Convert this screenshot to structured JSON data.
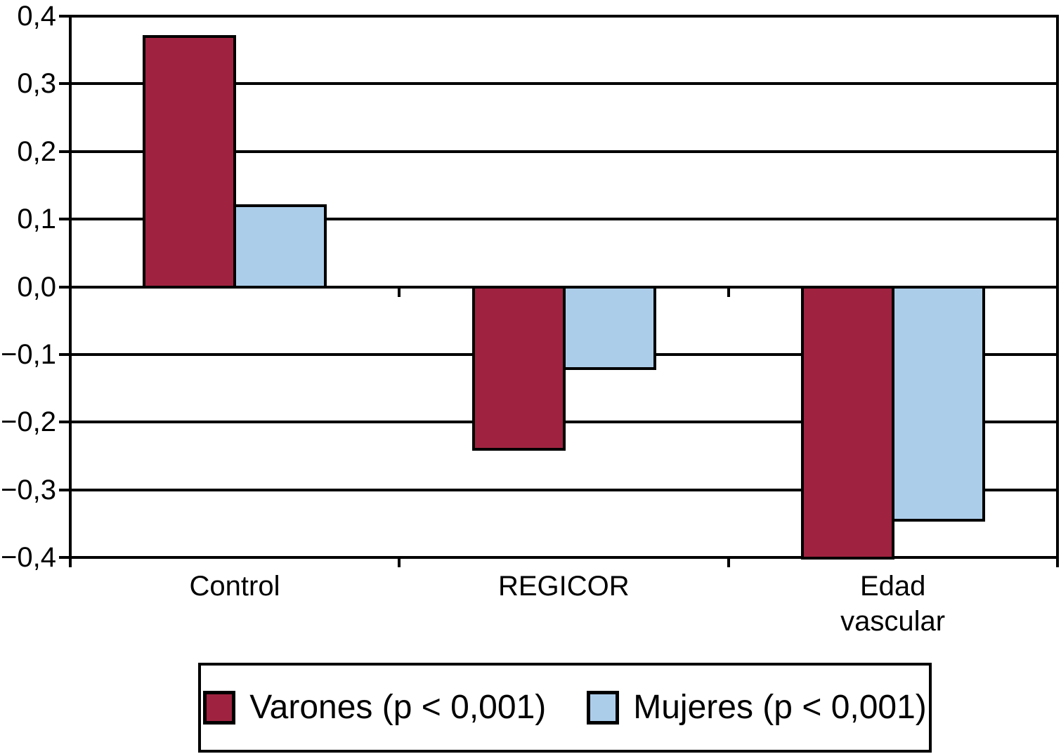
{
  "chart_data": {
    "type": "bar",
    "title": "",
    "xlabel": "",
    "ylabel": "",
    "categories": [
      "Control",
      "REGICOR",
      "Edad\nvascular"
    ],
    "series": [
      {
        "name": "Varones (p < 0,001)",
        "color": "#9F2340",
        "values": [
          0.37,
          -0.24,
          -0.4
        ]
      },
      {
        "name": "Mujeres (p < 0,001)",
        "color": "#ABCDEA",
        "values": [
          0.12,
          -0.12,
          -0.345
        ]
      }
    ],
    "ylim": [
      -0.4,
      0.4
    ],
    "ytick_step": 0.1,
    "ytick_values": [
      0.4,
      0.3,
      0.2,
      0.1,
      0.0,
      -0.1,
      -0.2,
      -0.3,
      -0.4
    ],
    "ytick_labels": [
      "0,4",
      "0,3",
      "0,2",
      "0,1",
      "0,0",
      "−0,1",
      "−0,2",
      "−0,3",
      "−0,4"
    ],
    "decimal_separator": ",",
    "grid": true,
    "legend_position": "bottom",
    "line_color": "#000000",
    "background_color": "#ffffff"
  }
}
